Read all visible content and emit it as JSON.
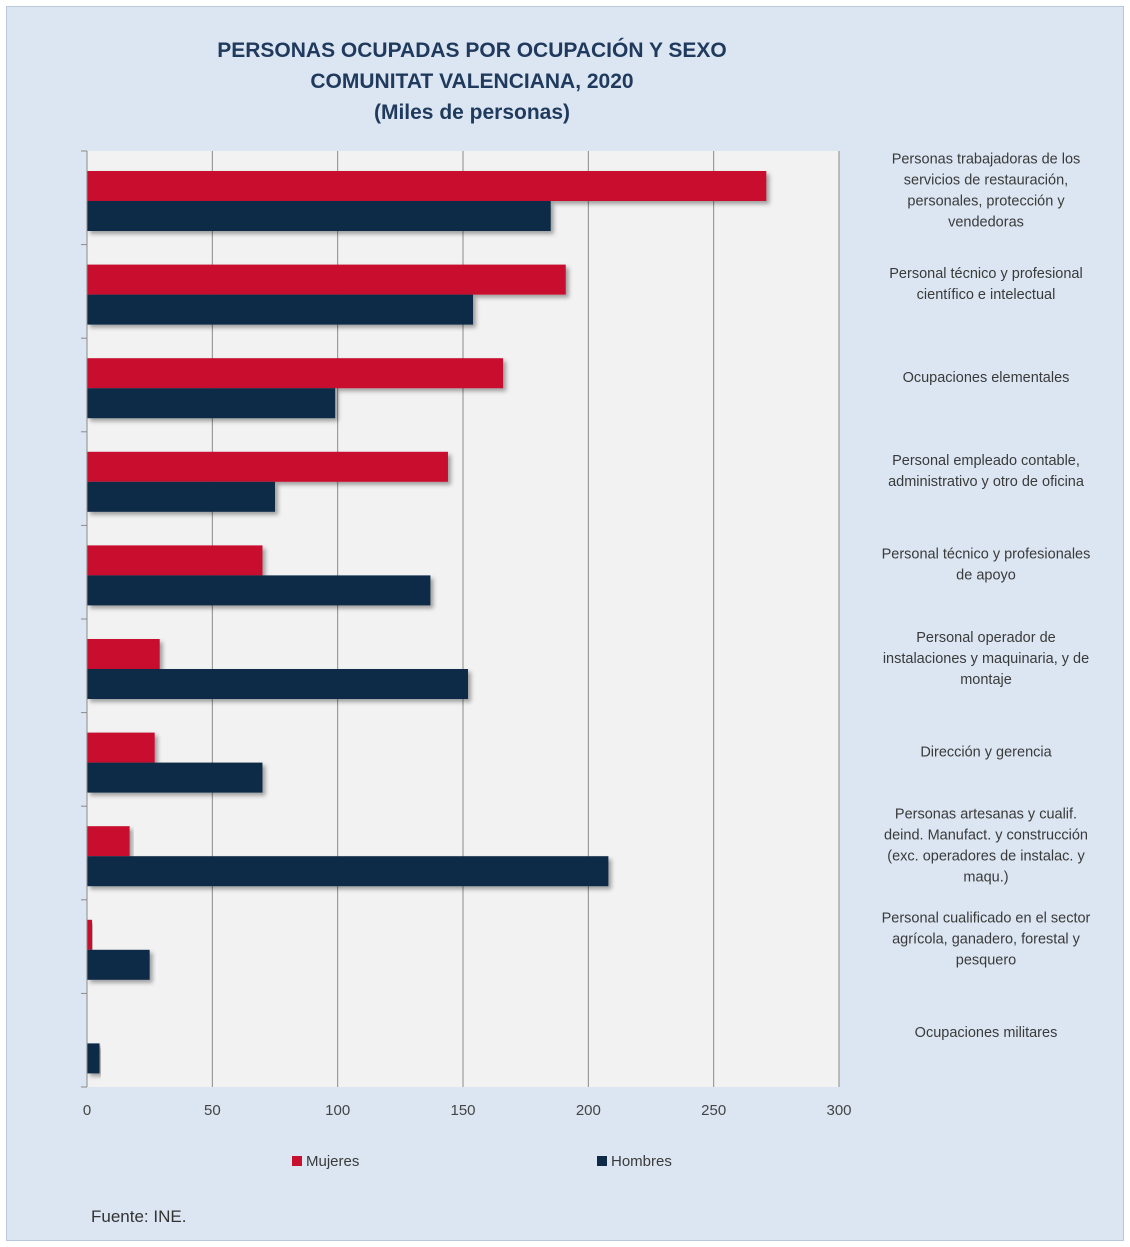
{
  "chart_data": {
    "type": "bar",
    "orientation": "horizontal",
    "title": [
      "PERSONAS OCUPADAS POR OCUPACIÓN Y SEXO",
      "COMUNITAT VALENCIANA, 2020",
      "(Miles de personas)"
    ],
    "categories": [
      [
        "Personas trabajadoras de los",
        "servicios de restauración,",
        "personales, protección y",
        "vendedoras"
      ],
      [
        "Personal técnico y profesional",
        "científico e intelectual"
      ],
      [
        "Ocupaciones elementales"
      ],
      [
        "Personal empleado contable,",
        "administrativo y otro de oficina"
      ],
      [
        "Personal técnico y profesionales",
        "de apoyo"
      ],
      [
        "Personal operador de",
        "instalaciones y maquinaria, y de",
        "montaje"
      ],
      [
        "Dirección y gerencia"
      ],
      [
        "Personas artesanas y  cualif.",
        "deind. Manufact. y construcción",
        "(exc. operadores de instalac. y",
        "maqu.)"
      ],
      [
        "Personal cualificado en el sector",
        "agrícola, ganadero, forestal y",
        "pesquero"
      ],
      [
        "Ocupaciones militares"
      ]
    ],
    "series": [
      {
        "name": "Mujeres",
        "color": "#c8102e",
        "values": [
          271,
          191,
          166,
          144,
          70,
          29,
          27,
          17,
          2,
          0
        ]
      },
      {
        "name": "Hombres",
        "color": "#0e2a47",
        "values": [
          185,
          154,
          99,
          75,
          137,
          152,
          70,
          208,
          25,
          5
        ]
      }
    ],
    "xlim": [
      0,
      300
    ],
    "xticks": [
      0,
      50,
      100,
      150,
      200,
      250,
      300
    ],
    "grid": true,
    "legend_position": "bottom",
    "plot_background": "#f2f2f2",
    "source": "Fuente: INE."
  }
}
